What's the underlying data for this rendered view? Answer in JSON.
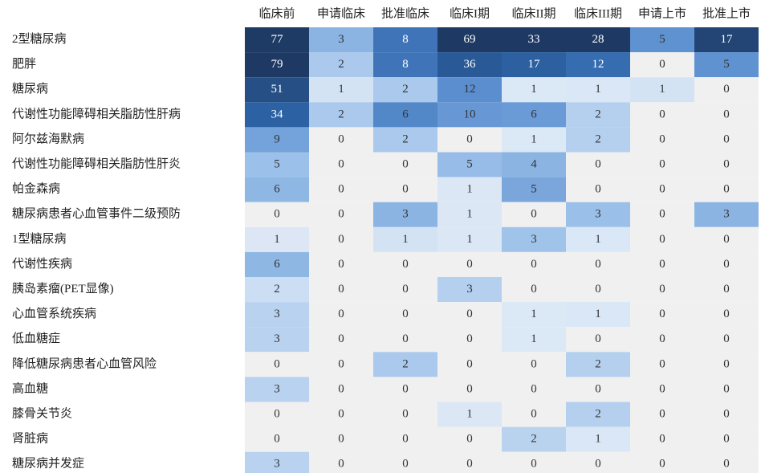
{
  "chart_data": {
    "type": "heatmap",
    "columns": [
      "临床前",
      "申请临床",
      "批准临床",
      "临床I期",
      "临床II期",
      "临床III期",
      "申请上市",
      "批准上市"
    ],
    "rows": [
      "2型糖尿病",
      "肥胖",
      "糖尿病",
      "代谢性功能障碍相关脂肪性肝病",
      "阿尔兹海默病",
      "代谢性功能障碍相关脂肪性肝炎",
      "帕金森病",
      "糖尿病患者心血管事件二级预防",
      "1型糖尿病",
      "代谢性疾病",
      "胰岛素瘤(PET显像)",
      "心血管系统疾病",
      "低血糖症",
      "降低糖尿病患者心血管风险",
      "高血糖",
      "膝骨关节炎",
      "肾脏病",
      "糖尿病并发症"
    ],
    "values": [
      [
        77,
        3,
        8,
        69,
        33,
        28,
        5,
        17
      ],
      [
        79,
        2,
        8,
        36,
        17,
        12,
        0,
        5
      ],
      [
        51,
        1,
        2,
        12,
        1,
        1,
        1,
        0
      ],
      [
        34,
        2,
        6,
        10,
        6,
        2,
        0,
        0
      ],
      [
        9,
        0,
        2,
        0,
        1,
        2,
        0,
        0
      ],
      [
        5,
        0,
        0,
        5,
        4,
        0,
        0,
        0
      ],
      [
        6,
        0,
        0,
        1,
        5,
        0,
        0,
        0
      ],
      [
        0,
        0,
        3,
        1,
        0,
        3,
        0,
        3
      ],
      [
        1,
        0,
        1,
        1,
        3,
        1,
        0,
        0
      ],
      [
        6,
        0,
        0,
        0,
        0,
        0,
        0,
        0
      ],
      [
        2,
        0,
        0,
        3,
        0,
        0,
        0,
        0
      ],
      [
        3,
        0,
        0,
        0,
        1,
        1,
        0,
        0
      ],
      [
        3,
        0,
        0,
        0,
        1,
        0,
        0,
        0
      ],
      [
        0,
        0,
        2,
        0,
        0,
        2,
        0,
        0
      ],
      [
        3,
        0,
        0,
        0,
        0,
        0,
        0,
        0
      ],
      [
        0,
        0,
        0,
        1,
        0,
        2,
        0,
        0
      ],
      [
        0,
        0,
        0,
        0,
        2,
        1,
        0,
        0
      ],
      [
        3,
        0,
        0,
        0,
        0,
        0,
        0,
        0
      ]
    ],
    "zero_color": "#f0f0f0",
    "colorscale": [
      "#e0e0f3",
      "#dbe8f6",
      "#9ec2ea",
      "#5b8fd0",
      "#2d64a8",
      "#1e3a64"
    ]
  }
}
